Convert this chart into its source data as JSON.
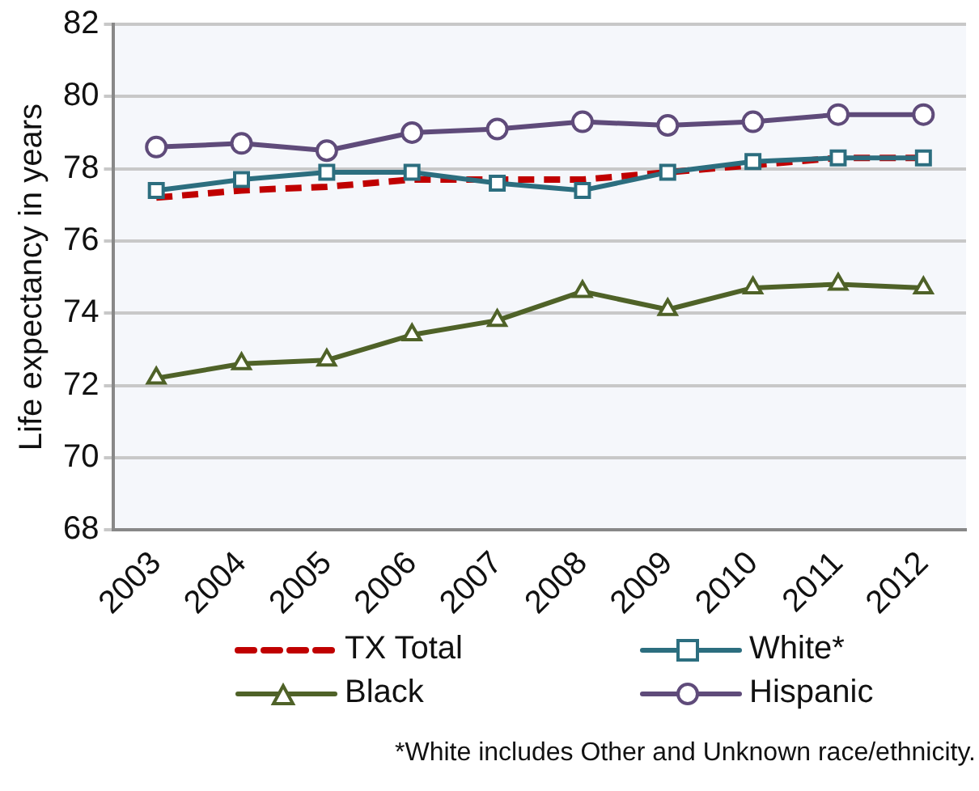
{
  "chart_data": {
    "type": "line",
    "ylabel": "Life expectancy in years",
    "categories": [
      "2003",
      "2004",
      "2005",
      "2006",
      "2007",
      "2008",
      "2009",
      "2010",
      "2011",
      "2012"
    ],
    "series": [
      {
        "name": "TX Total",
        "color": "#c00000",
        "line_style": "dashed",
        "marker": "none",
        "values": [
          77.2,
          77.4,
          77.5,
          77.7,
          77.7,
          77.7,
          77.9,
          78.1,
          78.3,
          78.3
        ]
      },
      {
        "name": "White*",
        "color": "#2c6e7f",
        "marker": "square",
        "values": [
          77.4,
          77.7,
          77.9,
          77.9,
          77.6,
          77.4,
          77.9,
          78.2,
          78.3,
          78.3
        ]
      },
      {
        "name": "Black",
        "color": "#4f6228",
        "marker": "triangle",
        "values": [
          72.2,
          72.6,
          72.7,
          73.4,
          73.8,
          74.6,
          74.1,
          74.7,
          74.8,
          74.7
        ]
      },
      {
        "name": "Hispanic",
        "color": "#5f4b7a",
        "marker": "circle",
        "values": [
          78.6,
          78.7,
          78.5,
          79.0,
          79.1,
          79.3,
          79.2,
          79.3,
          79.5,
          79.5
        ]
      }
    ],
    "ylim": [
      68,
      82
    ],
    "yticks": [
      68,
      70,
      72,
      74,
      76,
      78,
      80,
      82
    ],
    "grid": "y",
    "legend": "bottom",
    "annotations": [
      "*White includes Other and Unknown race/ethnicity."
    ]
  }
}
